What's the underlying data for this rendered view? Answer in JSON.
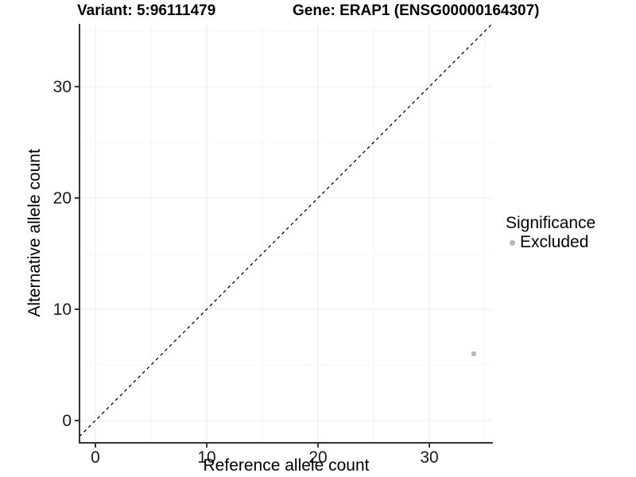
{
  "titles": {
    "variant": "Variant: 5:96111479",
    "gene": "Gene: ERAP1 (ENSG00000164307)"
  },
  "chart_data": {
    "type": "scatter",
    "xlabel": "Reference allele count",
    "ylabel": "Alternative allele count",
    "xlim": [
      -1.43,
      35.71
    ],
    "ylim": [
      -2.0,
      35.64
    ],
    "xticks": [
      0,
      10,
      20,
      30
    ],
    "yticks": [
      0,
      10,
      20,
      30
    ],
    "xticks_minor": [
      5,
      15,
      25,
      35
    ],
    "yticks_minor": [
      5,
      15,
      25,
      35
    ],
    "grid": true,
    "series": [
      {
        "name": "Excluded",
        "color": "#b8b8b8",
        "points": [
          {
            "x": 34,
            "y": 6
          }
        ]
      }
    ],
    "reference_line": {
      "kind": "identity",
      "slope": 1,
      "intercept": 0,
      "style": "dashed",
      "color": "#000000"
    },
    "legend": {
      "title": "Significance",
      "position": "right",
      "entries": [
        {
          "label": "Excluded",
          "color": "#b8b8b8"
        }
      ]
    }
  },
  "style": {
    "axis_line_color": "#333333",
    "tick_color": "#333333",
    "tick_label_color": "#1a1a1a",
    "grid_major_color": "#ececec",
    "grid_minor_color": "#f4f4f4",
    "point_radius": 3.2,
    "background": "#ffffff"
  }
}
